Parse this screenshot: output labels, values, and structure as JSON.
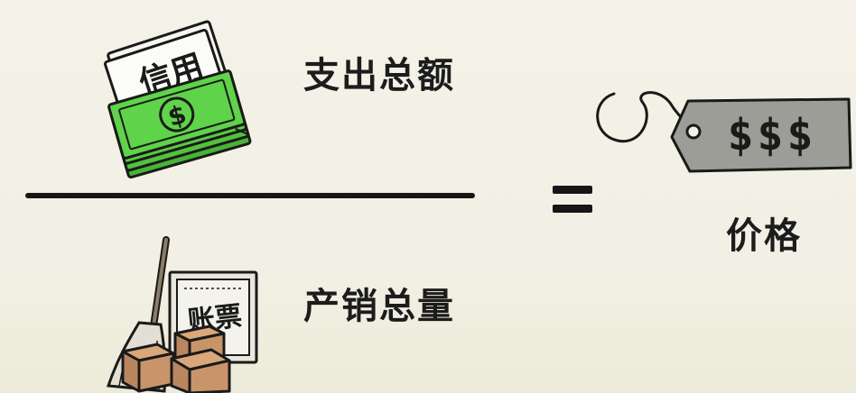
{
  "numerator": {
    "label": "支出总额",
    "icon": "money-stack-icon",
    "document_text": "信用",
    "bill_symbol": "$"
  },
  "denominator": {
    "label": "产销总量",
    "icon": "inventory-icon",
    "document_text": "账票"
  },
  "operator": "=",
  "result": {
    "label": "价格",
    "icon": "price-tag-icon",
    "tag_text": "$$$"
  },
  "colors": {
    "background": "#f3f1e6",
    "ink": "#161616",
    "money_green": "#5fd34a",
    "tag_gray": "#9b9d96",
    "box_brown": "#c8956a"
  }
}
